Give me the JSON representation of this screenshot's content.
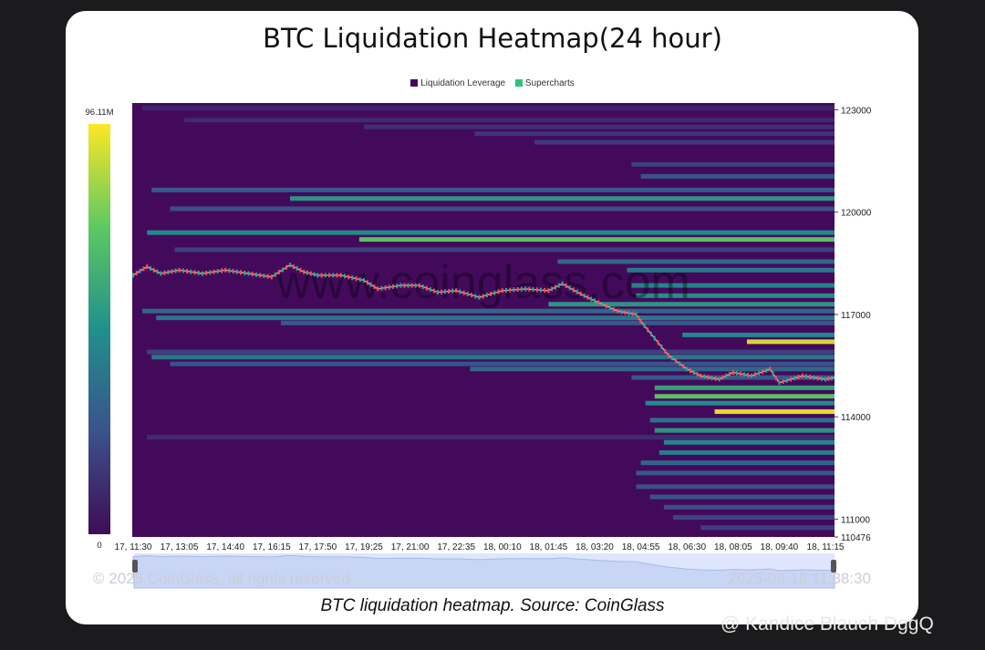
{
  "title": "BTC Liquidation Heatmap(24 hour)",
  "caption": "BTC liquidation heatmap. Source: CoinGlass",
  "watermark_top": "www.coinglass.com",
  "watermark_copyright": "© 2025 CoinGlass, all rights reserved",
  "watermark_timestamp": "2025-08-18 11:38:30",
  "author_watermark": "@ Kandice Blauch DggQ",
  "colors": {
    "background": "#430a5c",
    "candle_up": "#26a69a",
    "candle_down": "#ef5350",
    "scale_low": "#3f0d55",
    "scale_mid": "#21908c",
    "scale_high": "#fde725"
  },
  "chart_data": {
    "type": "heatmap",
    "legend": [
      {
        "name": "Liquidation Leverage",
        "color": "#430a5c"
      },
      {
        "name": "Supercharts",
        "color": "#2ec27e"
      }
    ],
    "colorbar": {
      "max_label": "96.11M",
      "min_label": "0",
      "max": 96.11,
      "min": 0,
      "unit": "M"
    },
    "y_axis": {
      "ticks": [
        123000,
        120000,
        117000,
        114000,
        111000,
        110476
      ],
      "range": [
        110476,
        123200
      ]
    },
    "x_axis": {
      "ticks": [
        "17, 11:30",
        "17, 13:05",
        "17, 14:40",
        "17, 16:15",
        "17, 17:50",
        "17, 19:25",
        "17, 21:00",
        "17, 22:35",
        "18, 00:10",
        "18, 01:45",
        "18, 03:20",
        "18, 04:55",
        "18, 06:30",
        "18, 08:05",
        "18, 09:40",
        "18, 11:15"
      ]
    },
    "price_path": [
      {
        "t": 0.0,
        "p": 118150
      },
      {
        "t": 0.3,
        "p": 118400
      },
      {
        "t": 0.6,
        "p": 118200
      },
      {
        "t": 1.0,
        "p": 118300
      },
      {
        "t": 1.5,
        "p": 118200
      },
      {
        "t": 2.0,
        "p": 118300
      },
      {
        "t": 2.5,
        "p": 118200
      },
      {
        "t": 3.0,
        "p": 118100
      },
      {
        "t": 3.4,
        "p": 118450
      },
      {
        "t": 3.7,
        "p": 118250
      },
      {
        "t": 4.0,
        "p": 118150
      },
      {
        "t": 4.5,
        "p": 118150
      },
      {
        "t": 5.0,
        "p": 118000
      },
      {
        "t": 5.3,
        "p": 117750
      },
      {
        "t": 5.8,
        "p": 117850
      },
      {
        "t": 6.2,
        "p": 117850
      },
      {
        "t": 6.6,
        "p": 117650
      },
      {
        "t": 7.0,
        "p": 117700
      },
      {
        "t": 7.5,
        "p": 117500
      },
      {
        "t": 8.0,
        "p": 117700
      },
      {
        "t": 8.5,
        "p": 117750
      },
      {
        "t": 9.0,
        "p": 117700
      },
      {
        "t": 9.3,
        "p": 117900
      },
      {
        "t": 9.7,
        "p": 117600
      },
      {
        "t": 10.0,
        "p": 117400
      },
      {
        "t": 10.5,
        "p": 117100
      },
      {
        "t": 10.9,
        "p": 117000
      },
      {
        "t": 11.0,
        "p": 116800
      },
      {
        "t": 11.3,
        "p": 116300
      },
      {
        "t": 11.6,
        "p": 115800
      },
      {
        "t": 12.0,
        "p": 115400
      },
      {
        "t": 12.3,
        "p": 115200
      },
      {
        "t": 12.7,
        "p": 115100
      },
      {
        "t": 13.0,
        "p": 115300
      },
      {
        "t": 13.4,
        "p": 115200
      },
      {
        "t": 13.8,
        "p": 115400
      },
      {
        "t": 14.0,
        "p": 115000
      },
      {
        "t": 14.5,
        "p": 115200
      },
      {
        "t": 15.0,
        "p": 115100
      },
      {
        "t": 15.2,
        "p": 115150
      }
    ],
    "liquidity_bands": [
      {
        "price": 123050,
        "from": 0.2,
        "intensity": 0.1
      },
      {
        "price": 122700,
        "from": 1.1,
        "intensity": 0.12
      },
      {
        "price": 122500,
        "from": 5.0,
        "intensity": 0.14
      },
      {
        "price": 122300,
        "from": 7.4,
        "intensity": 0.16
      },
      {
        "price": 122050,
        "from": 8.7,
        "intensity": 0.18
      },
      {
        "price": 121400,
        "from": 10.8,
        "intensity": 0.2
      },
      {
        "price": 121050,
        "from": 11.0,
        "intensity": 0.28
      },
      {
        "price": 120650,
        "from": 0.4,
        "intensity": 0.3
      },
      {
        "price": 120400,
        "from": 3.4,
        "intensity": 0.55
      },
      {
        "price": 120100,
        "from": 0.8,
        "intensity": 0.25
      },
      {
        "price": 119400,
        "from": 0.3,
        "intensity": 0.5
      },
      {
        "price": 119200,
        "from": 4.9,
        "intensity": 0.75
      },
      {
        "price": 118900,
        "from": 0.9,
        "intensity": 0.2
      },
      {
        "price": 118550,
        "from": 9.2,
        "intensity": 0.35
      },
      {
        "price": 118300,
        "from": 10.7,
        "intensity": 0.42
      },
      {
        "price": 117850,
        "from": 10.8,
        "intensity": 0.48
      },
      {
        "price": 117550,
        "from": 10.9,
        "intensity": 0.52
      },
      {
        "price": 117300,
        "from": 9.0,
        "intensity": 0.55
      },
      {
        "price": 117100,
        "from": 0.2,
        "intensity": 0.35
      },
      {
        "price": 116900,
        "from": 0.5,
        "intensity": 0.42
      },
      {
        "price": 116750,
        "from": 3.2,
        "intensity": 0.3
      },
      {
        "price": 116400,
        "from": 11.9,
        "intensity": 0.5
      },
      {
        "price": 116200,
        "from": 13.3,
        "intensity": 0.95
      },
      {
        "price": 115900,
        "from": 0.3,
        "intensity": 0.2
      },
      {
        "price": 115750,
        "from": 0.4,
        "intensity": 0.42
      },
      {
        "price": 115550,
        "from": 0.8,
        "intensity": 0.28
      },
      {
        "price": 115400,
        "from": 7.3,
        "intensity": 0.35
      },
      {
        "price": 115150,
        "from": 10.8,
        "intensity": 0.3
      },
      {
        "price": 114850,
        "from": 11.3,
        "intensity": 0.6
      },
      {
        "price": 114600,
        "from": 11.3,
        "intensity": 0.75
      },
      {
        "price": 114400,
        "from": 11.1,
        "intensity": 0.5
      },
      {
        "price": 114150,
        "from": 12.6,
        "intensity": 0.98
      },
      {
        "price": 113900,
        "from": 11.2,
        "intensity": 0.4
      },
      {
        "price": 113600,
        "from": 11.3,
        "intensity": 0.55
      },
      {
        "price": 113400,
        "from": 0.3,
        "intensity": 0.12
      },
      {
        "price": 113250,
        "from": 11.5,
        "intensity": 0.5
      },
      {
        "price": 112950,
        "from": 11.4,
        "intensity": 0.45
      },
      {
        "price": 112650,
        "from": 11.0,
        "intensity": 0.35
      },
      {
        "price": 112350,
        "from": 10.9,
        "intensity": 0.3
      },
      {
        "price": 111950,
        "from": 10.9,
        "intensity": 0.25
      },
      {
        "price": 111650,
        "from": 11.2,
        "intensity": 0.28
      },
      {
        "price": 111350,
        "from": 11.5,
        "intensity": 0.25
      },
      {
        "price": 111050,
        "from": 11.7,
        "intensity": 0.22
      },
      {
        "price": 110750,
        "from": 12.3,
        "intensity": 0.2
      }
    ]
  }
}
